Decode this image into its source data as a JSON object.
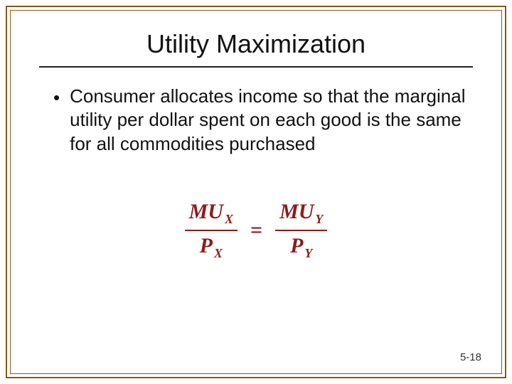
{
  "colors": {
    "frame": "#8a5a1a",
    "formula": "#8c1c1c",
    "text": "#111111",
    "background": "#ffffff"
  },
  "title": "Utility Maximization",
  "bullet": {
    "marker": "•",
    "text": "Consumer allocates income so that the marginal utility per dollar spent on each good is the same for all commodities purchased"
  },
  "formula": {
    "left_num_base": "MU",
    "left_num_sub": "X",
    "left_den_base": "P",
    "left_den_sub": "X",
    "eq": "=",
    "right_num_base": "MU",
    "right_num_sub": "Y",
    "right_den_base": "P",
    "right_den_sub": "Y"
  },
  "page_number": "5-18"
}
